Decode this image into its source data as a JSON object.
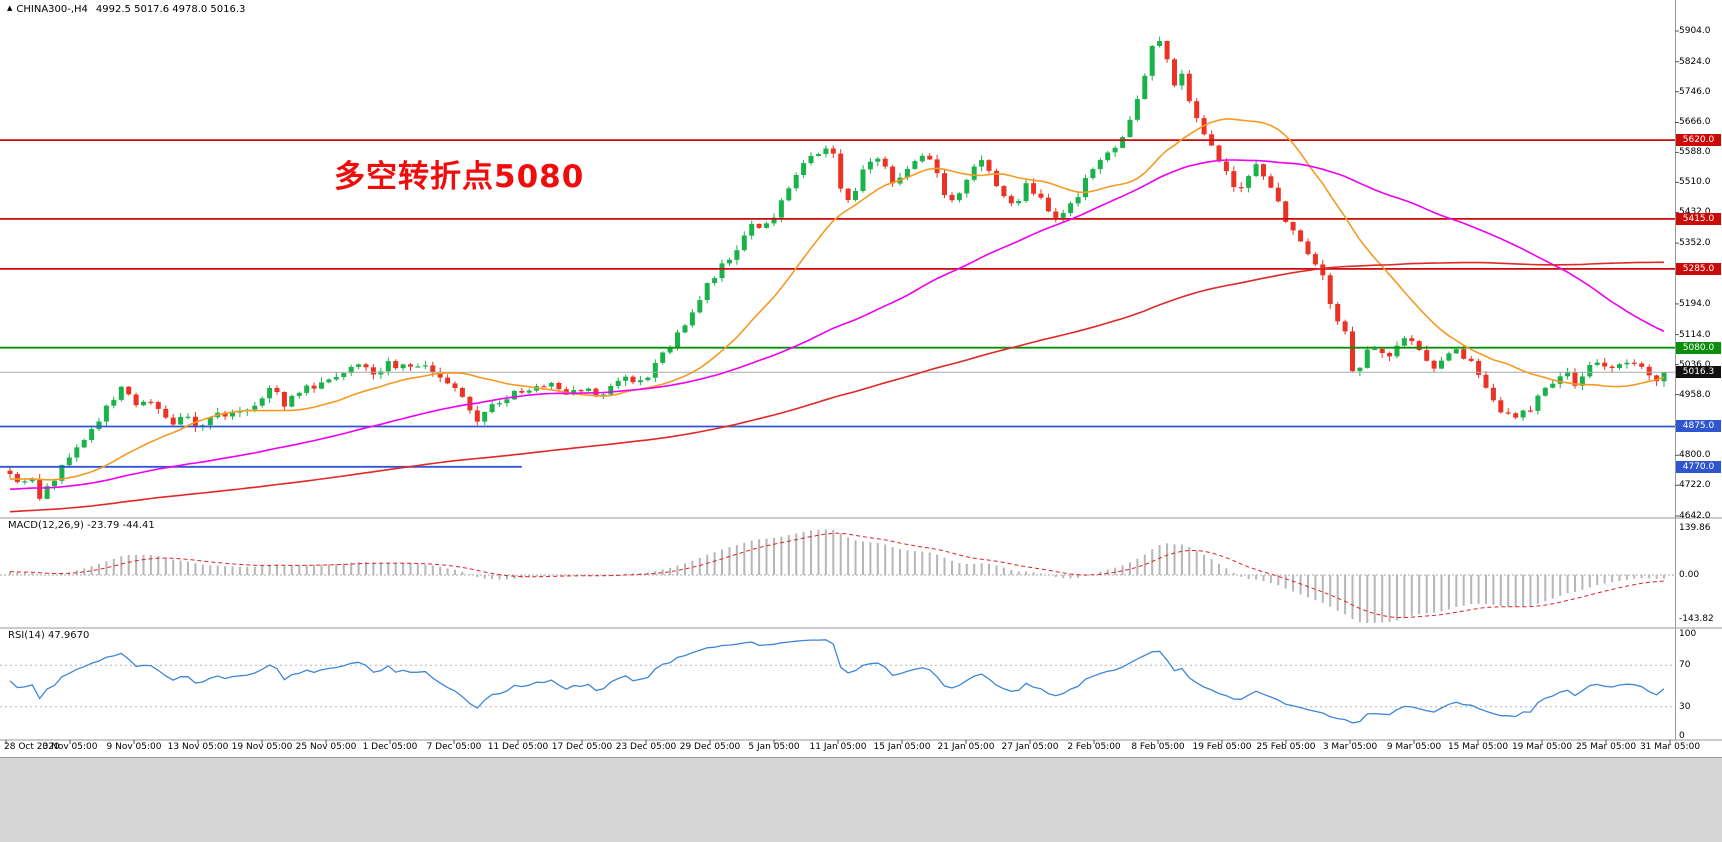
{
  "header": {
    "marker": "▲",
    "title": "CHINA300-,H4",
    "ohlc_values": "4992.5 5017.6 4978.0 5016.3"
  },
  "annotation": {
    "text": "多空转折点5080",
    "color": "#f10c0c"
  },
  "panels": {
    "macd": {
      "label": "MACD(12,26,9) -23.79 -44.41"
    },
    "rsi": {
      "label": "RSI(14) 47.9670"
    }
  },
  "chart_data": {
    "type": "candlestick",
    "symbol": "CHINA300-",
    "timeframe": "H4",
    "ohlc_current": {
      "open": 4992.5,
      "high": 5017.6,
      "low": 4978.0,
      "close": 5016.3
    },
    "y_axis": {
      "ticks": [
        "5904.0",
        "5824.0",
        "5746.0",
        "5666.0",
        "5588.0",
        "5510.0",
        "5432.0",
        "5352.0",
        "5274.0",
        "5194.0",
        "5114.0",
        "5036.0",
        "4958.0",
        "4880.0",
        "4800.0",
        "4722.0",
        "4642.0"
      ]
    },
    "x_axis": {
      "labels": [
        "28 Oct 2020",
        "3 Nov 05:00",
        "9 Nov 05:00",
        "13 Nov 05:00",
        "19 Nov 05:00",
        "25 Nov 05:00",
        "1 Dec 05:00",
        "7 Dec 05:00",
        "11 Dec 05:00",
        "17 Dec 05:00",
        "23 Dec 05:00",
        "29 Dec 05:00",
        "5 Jan 05:00",
        "11 Jan 05:00",
        "15 Jan 05:00",
        "21 Jan 05:00",
        "27 Jan 05:00",
        "2 Feb 05:00",
        "8 Feb 05:00",
        "19 Feb 05:00",
        "25 Feb 05:00",
        "3 Mar 05:00",
        "9 Mar 05:00",
        "15 Mar 05:00",
        "19 Mar 05:00",
        "25 Mar 05:00",
        "31 Mar 05:00"
      ]
    },
    "horizontal_levels": [
      {
        "value": 5620.0,
        "label": "5620.0",
        "color": "#cc0a0a"
      },
      {
        "value": 5415.0,
        "label": "5415.0",
        "color": "#cc0a0a"
      },
      {
        "value": 5285.0,
        "label": "5285.0",
        "color": "#cc0a0a"
      },
      {
        "value": 5080.0,
        "label": "5080.0",
        "color": "#0b8f0b"
      },
      {
        "value": 4875.0,
        "label": "4875.0",
        "color": "#3056cf"
      },
      {
        "value": 4770.0,
        "label": "4770.0",
        "color": "#3056cf",
        "extent": 0.31
      }
    ],
    "last_price": {
      "value": 5016.3,
      "label": "5016.3",
      "line_color": "#a9a9a9",
      "tag_bg": "#111111"
    },
    "candle_count": 224,
    "candle_colors": {
      "up": "#19b24b",
      "down": "#ea3325"
    },
    "moving_averages": [
      {
        "period": 20,
        "color": "#f59a23"
      },
      {
        "period": 60,
        "color": "#f000f0"
      },
      {
        "period": 150,
        "color": "#e02828"
      }
    ],
    "indicators": {
      "macd": {
        "fast": 12,
        "slow": 26,
        "signal": 9,
        "main_value": -23.79,
        "signal_value": -44.41,
        "histogram_color": "#b6b6b6",
        "signal_color": "#e02020",
        "axis_ticks": [
          "139.86",
          "0.00",
          "-143.82"
        ]
      },
      "rsi": {
        "period": 14,
        "value": 47.967,
        "line_color": "#3f86d8",
        "levels": [
          70,
          30
        ],
        "axis_ticks": [
          "100",
          "70",
          "30",
          "0"
        ]
      }
    },
    "price_path": [
      [
        0.0,
        4760
      ],
      [
        0.006,
        4706
      ],
      [
        0.012,
        4748
      ],
      [
        0.018,
        4692
      ],
      [
        0.024,
        4722
      ],
      [
        0.03,
        4762
      ],
      [
        0.04,
        4812
      ],
      [
        0.052,
        4882
      ],
      [
        0.062,
        4948
      ],
      [
        0.069,
        4976
      ],
      [
        0.076,
        4932
      ],
      [
        0.083,
        4952
      ],
      [
        0.09,
        4912
      ],
      [
        0.098,
        4882
      ],
      [
        0.106,
        4902
      ],
      [
        0.112,
        4876
      ],
      [
        0.12,
        4892
      ],
      [
        0.128,
        4912
      ],
      [
        0.136,
        4902
      ],
      [
        0.144,
        4926
      ],
      [
        0.152,
        4948
      ],
      [
        0.158,
        4988
      ],
      [
        0.165,
        4932
      ],
      [
        0.172,
        4956
      ],
      [
        0.18,
        4976
      ],
      [
        0.188,
        4992
      ],
      [
        0.196,
        5006
      ],
      [
        0.205,
        5032
      ],
      [
        0.213,
        5052
      ],
      [
        0.22,
        5012
      ],
      [
        0.228,
        5042
      ],
      [
        0.236,
        5026
      ],
      [
        0.244,
        5042
      ],
      [
        0.252,
        5022
      ],
      [
        0.26,
        5002
      ],
      [
        0.268,
        4986
      ],
      [
        0.275,
        4936
      ],
      [
        0.281,
        4882
      ],
      [
        0.288,
        4916
      ],
      [
        0.295,
        4942
      ],
      [
        0.303,
        4956
      ],
      [
        0.31,
        4966
      ],
      [
        0.318,
        4976
      ],
      [
        0.326,
        4986
      ],
      [
        0.334,
        4962
      ],
      [
        0.342,
        4982
      ],
      [
        0.35,
        4966
      ],
      [
        0.358,
        4948
      ],
      [
        0.366,
        4990
      ],
      [
        0.374,
        5002
      ],
      [
        0.381,
        4996
      ],
      [
        0.388,
        5016
      ],
      [
        0.395,
        5062
      ],
      [
        0.403,
        5112
      ],
      [
        0.411,
        5162
      ],
      [
        0.419,
        5222
      ],
      [
        0.427,
        5272
      ],
      [
        0.435,
        5312
      ],
      [
        0.443,
        5362
      ],
      [
        0.45,
        5412
      ],
      [
        0.456,
        5388
      ],
      [
        0.462,
        5422
      ],
      [
        0.468,
        5472
      ],
      [
        0.475,
        5522
      ],
      [
        0.482,
        5562
      ],
      [
        0.49,
        5592
      ],
      [
        0.497,
        5612
      ],
      [
        0.503,
        5482
      ],
      [
        0.509,
        5462
      ],
      [
        0.515,
        5532
      ],
      [
        0.522,
        5582
      ],
      [
        0.528,
        5552
      ],
      [
        0.534,
        5512
      ],
      [
        0.54,
        5532
      ],
      [
        0.547,
        5572
      ],
      [
        0.553,
        5586
      ],
      [
        0.559,
        5552
      ],
      [
        0.565,
        5482
      ],
      [
        0.571,
        5456
      ],
      [
        0.577,
        5502
      ],
      [
        0.584,
        5556
      ],
      [
        0.59,
        5562
      ],
      [
        0.596,
        5512
      ],
      [
        0.602,
        5472
      ],
      [
        0.608,
        5452
      ],
      [
        0.614,
        5506
      ],
      [
        0.62,
        5482
      ],
      [
        0.626,
        5442
      ],
      [
        0.632,
        5406
      ],
      [
        0.638,
        5426
      ],
      [
        0.645,
        5476
      ],
      [
        0.652,
        5522
      ],
      [
        0.658,
        5556
      ],
      [
        0.664,
        5582
      ],
      [
        0.67,
        5616
      ],
      [
        0.676,
        5662
      ],
      [
        0.682,
        5732
      ],
      [
        0.688,
        5812
      ],
      [
        0.693,
        5902
      ],
      [
        0.697,
        5872
      ],
      [
        0.701,
        5802
      ],
      [
        0.705,
        5756
      ],
      [
        0.709,
        5792
      ],
      [
        0.713,
        5732
      ],
      [
        0.718,
        5672
      ],
      [
        0.723,
        5626
      ],
      [
        0.728,
        5592
      ],
      [
        0.733,
        5562
      ],
      [
        0.738,
        5522
      ],
      [
        0.743,
        5482
      ],
      [
        0.748,
        5522
      ],
      [
        0.753,
        5556
      ],
      [
        0.758,
        5532
      ],
      [
        0.763,
        5482
      ],
      [
        0.768,
        5442
      ],
      [
        0.773,
        5402
      ],
      [
        0.778,
        5362
      ],
      [
        0.783,
        5332
      ],
      [
        0.788,
        5302
      ],
      [
        0.793,
        5272
      ],
      [
        0.798,
        5202
      ],
      [
        0.803,
        5152
      ],
      [
        0.808,
        5122
      ],
      [
        0.813,
        4988
      ],
      [
        0.818,
        5052
      ],
      [
        0.823,
        5096
      ],
      [
        0.828,
        5062
      ],
      [
        0.833,
        5042
      ],
      [
        0.838,
        5082
      ],
      [
        0.843,
        5112
      ],
      [
        0.848,
        5086
      ],
      [
        0.853,
        5062
      ],
      [
        0.858,
        5042
      ],
      [
        0.863,
        5032
      ],
      [
        0.868,
        5056
      ],
      [
        0.873,
        5072
      ],
      [
        0.878,
        5062
      ],
      [
        0.883,
        5042
      ],
      [
        0.888,
        5012
      ],
      [
        0.893,
        4966
      ],
      [
        0.898,
        4936
      ],
      [
        0.903,
        4912
      ],
      [
        0.908,
        4892
      ],
      [
        0.913,
        4926
      ],
      [
        0.918,
        4906
      ],
      [
        0.923,
        4946
      ],
      [
        0.928,
        4976
      ],
      [
        0.934,
        4996
      ],
      [
        0.94,
        5012
      ],
      [
        0.946,
        4986
      ],
      [
        0.952,
        5012
      ],
      [
        0.958,
        5036
      ],
      [
        0.964,
        5022
      ],
      [
        0.97,
        5042
      ],
      [
        0.976,
        5030
      ],
      [
        0.982,
        5044
      ],
      [
        0.988,
        5032
      ],
      [
        0.994,
        4992
      ],
      [
        1.0,
        5016.3
      ]
    ]
  }
}
